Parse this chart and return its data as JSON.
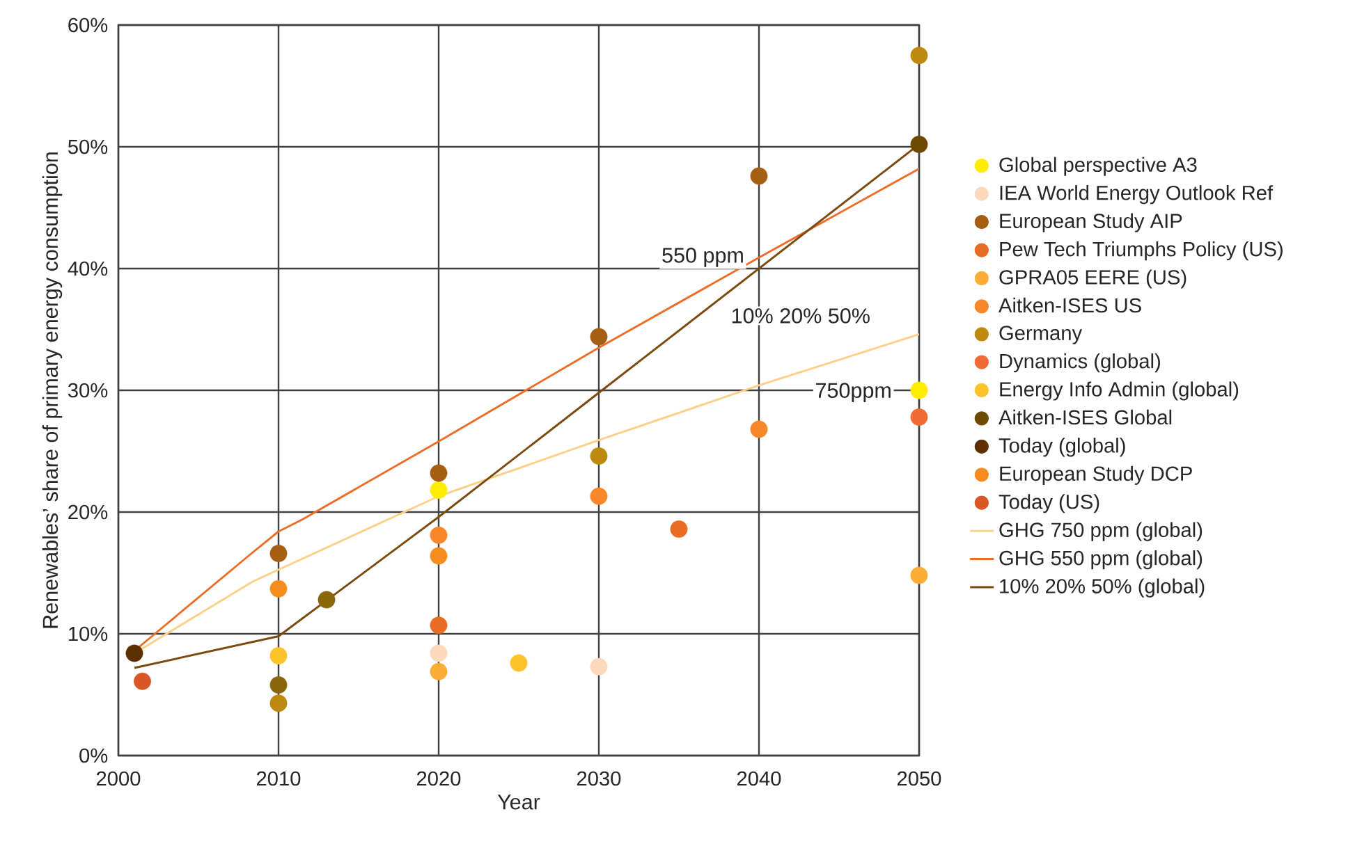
{
  "chart_data": {
    "type": "scatter",
    "xlabel": "Year",
    "ylabel": "Renewables’ share of primary energy consumption",
    "xlim": [
      2000,
      2050
    ],
    "ylim": [
      0,
      60
    ],
    "xticks": [
      2000,
      2010,
      2020,
      2030,
      2040,
      2050
    ],
    "yticks": [
      {
        "value": 0,
        "label": "0%"
      },
      {
        "value": 10,
        "label": "10%"
      },
      {
        "value": 20,
        "label": "20%"
      },
      {
        "value": 30,
        "label": "30%"
      },
      {
        "value": 40,
        "label": "40%"
      },
      {
        "value": 50,
        "label": "50%"
      },
      {
        "value": 60,
        "label": "60%"
      }
    ],
    "grid": true,
    "legend": "right",
    "marker": "circle",
    "series": [
      {
        "name": "Global perspective A3",
        "color": "#ffec00",
        "x": [
          2020,
          2050
        ],
        "values": [
          21.8,
          30
        ]
      },
      {
        "name": "IEA World Energy Outlook Ref",
        "color": "#fcd9bc",
        "x": [
          2020,
          2030
        ],
        "values": [
          8.4,
          7.3
        ]
      },
      {
        "name": "European Study AIP",
        "color": "#a65e12",
        "x": [
          2010,
          2020,
          2030,
          2040
        ],
        "values": [
          16.6,
          23.2,
          34.4,
          47.6
        ]
      },
      {
        "name": "Pew Tech Triumphs Policy (US)",
        "color": "#e86c23",
        "x": [
          2020,
          2035
        ],
        "values": [
          10.7,
          18.6
        ]
      },
      {
        "name": "GPRA05 EERE (US)",
        "color": "#fbad35",
        "x": [
          2020,
          2050
        ],
        "values": [
          6.9,
          14.8
        ]
      },
      {
        "name": "Aitken-ISES US",
        "color": "#f6872a",
        "x": [
          2020,
          2030,
          2040
        ],
        "values": [
          18.1,
          21.3,
          26.8
        ]
      },
      {
        "name": "Germany",
        "color": "#bb8a0f",
        "x": [
          2010,
          2030,
          2050
        ],
        "values": [
          4.3,
          24.6,
          57.5
        ]
      },
      {
        "name": "Dynamics (global)",
        "color": "#f26a36",
        "x": [
          2050
        ],
        "values": [
          27.8
        ]
      },
      {
        "color": "#8a6608",
        "x": [
          2010,
          2013
        ],
        "values": [
          5.8,
          12.8
        ]
      },
      {
        "name": "Energy Info Admin (global)",
        "color": "#fec22b",
        "x": [
          2010,
          2025
        ],
        "values": [
          8.2,
          7.6
        ]
      },
      {
        "name": "Aitken-ISES Global",
        "color": "#6e4a00",
        "x": [
          2050
        ],
        "values": [
          50.2
        ]
      },
      {
        "name": "Today (global)",
        "color": "#5c3000",
        "x": [
          2001
        ],
        "values": [
          8.4
        ]
      },
      {
        "name": "European Study DCP",
        "color": "#f48d1e",
        "x": [
          2010,
          2020
        ],
        "values": [
          13.7,
          16.4
        ]
      },
      {
        "name": "Today (US)",
        "color": "#db5626",
        "x": [
          2001.5
        ],
        "values": [
          6.1
        ]
      },
      {
        "name": "GHG 750 ppm (global)",
        "type": "line",
        "marker": "none",
        "color": "#fdd08a",
        "x": [
          2001,
          2008.4,
          2020,
          2030,
          2040,
          2050
        ],
        "values": [
          8.4,
          14.3,
          21.3,
          25.9,
          30.4,
          34.6
        ]
      },
      {
        "name": "GHG 550 ppm (global)",
        "type": "line",
        "marker": "none",
        "color": "#ec6d27",
        "x": [
          2001,
          2008.4,
          2010,
          2011.5,
          2020,
          2030,
          2040,
          2050
        ],
        "values": [
          8.6,
          16.7,
          18.4,
          19.4,
          25.8,
          33.5,
          40.9,
          48.2
        ]
      },
      {
        "name": "10% 20% 50% (global)",
        "type": "line",
        "marker": "none",
        "color": "#7a4a10",
        "x": [
          2001,
          2010,
          2020,
          2030,
          2040,
          2050
        ],
        "values": [
          7.2,
          9.8,
          19.6,
          29.8,
          40,
          50.2
        ]
      }
    ],
    "annotations": [
      "550 ppm",
      "10% 20% 50%",
      "750ppm"
    ]
  }
}
